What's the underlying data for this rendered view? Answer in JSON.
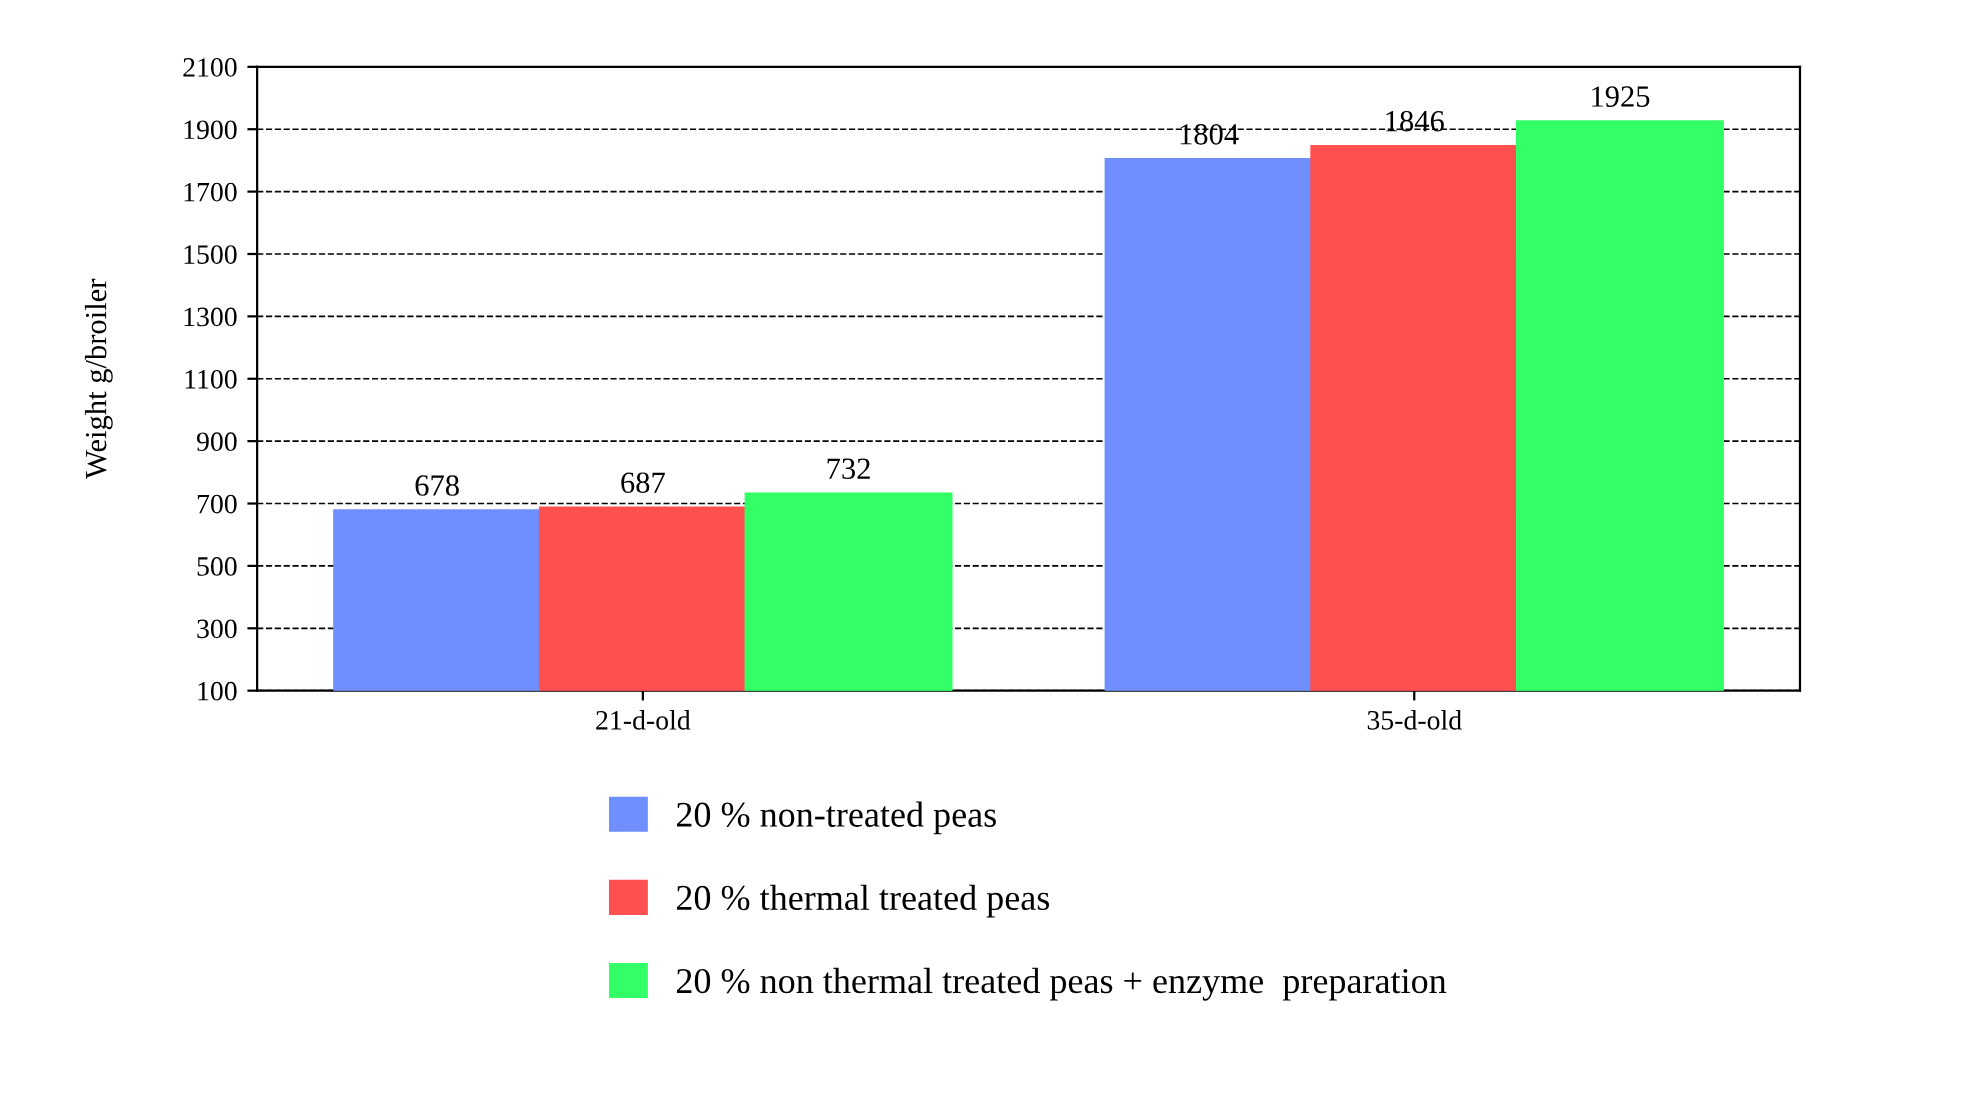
{
  "chart_data": {
    "type": "bar",
    "ylabel": "Weight g/broiler",
    "categories": [
      "21-d-old",
      "35-d-old"
    ],
    "series": [
      {
        "name": "20 % non-treated peas",
        "color": "#6f8fff",
        "values": [
          678,
          1804
        ]
      },
      {
        "name": "20 % thermal treated peas",
        "color": "#ff5050",
        "values": [
          687,
          1846
        ]
      },
      {
        "name": "20 % non thermal treated peas + enzyme  preparation",
        "color": "#33ff66",
        "values": [
          732,
          1925
        ]
      }
    ],
    "ylim": [
      100,
      2100
    ],
    "yticks": [
      100,
      300,
      500,
      700,
      900,
      1100,
      1300,
      1500,
      1700,
      1900,
      2100
    ],
    "grid": "y",
    "legend": "bottom",
    "data_labels": true
  }
}
